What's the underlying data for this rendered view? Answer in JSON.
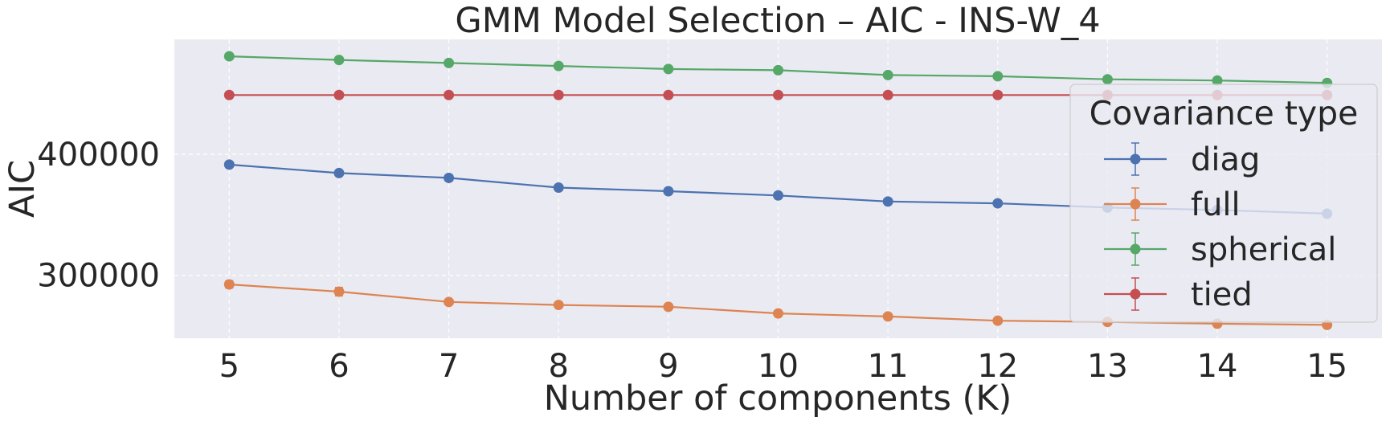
{
  "chart_data": {
    "type": "line",
    "title": "GMM Model Selection – AIC - INS-W_4",
    "xlabel": "Number of components (K)",
    "ylabel": "AIC",
    "x": [
      5,
      6,
      7,
      8,
      9,
      10,
      11,
      12,
      13,
      14,
      15
    ],
    "x_ticks": [
      "5",
      "6",
      "7",
      "8",
      "9",
      "10",
      "11",
      "12",
      "13",
      "14",
      "15"
    ],
    "y_ticks": [
      "300000",
      "400000"
    ],
    "xlim": [
      4.5,
      15.5
    ],
    "ylim": [
      248000,
      495000
    ],
    "grid": true,
    "legend": {
      "title": "Covariance type",
      "position": "right"
    },
    "series": [
      {
        "name": "diag",
        "color": "#4c72b0",
        "values": [
          391500,
          384500,
          380500,
          372500,
          369500,
          366000,
          361000,
          359500,
          356000,
          354000,
          351000
        ],
        "errors": [
          1000,
          1500,
          2500,
          2000,
          1500,
          1500,
          1500,
          1500,
          1500,
          1500,
          1500
        ]
      },
      {
        "name": "full",
        "color": "#dd8452",
        "values": [
          292500,
          286500,
          278000,
          275500,
          274000,
          268500,
          266000,
          262500,
          261500,
          260000,
          259000
        ],
        "errors": [
          3000,
          3500,
          2000,
          1500,
          1500,
          1500,
          1500,
          1500,
          1500,
          1500,
          1500
        ]
      },
      {
        "name": "spherical",
        "color": "#55a868",
        "values": [
          481000,
          478000,
          475500,
          473000,
          470500,
          469500,
          465500,
          464500,
          462000,
          461000,
          459000
        ],
        "errors": [
          700,
          700,
          700,
          700,
          700,
          700,
          700,
          700,
          700,
          700,
          700
        ]
      },
      {
        "name": "tied",
        "color": "#c44e52",
        "values": [
          449000,
          449000,
          449000,
          449000,
          449000,
          449000,
          449000,
          449000,
          449000,
          449000,
          449000
        ],
        "errors": [
          500,
          500,
          500,
          500,
          500,
          500,
          500,
          500,
          500,
          500,
          500
        ]
      }
    ]
  }
}
